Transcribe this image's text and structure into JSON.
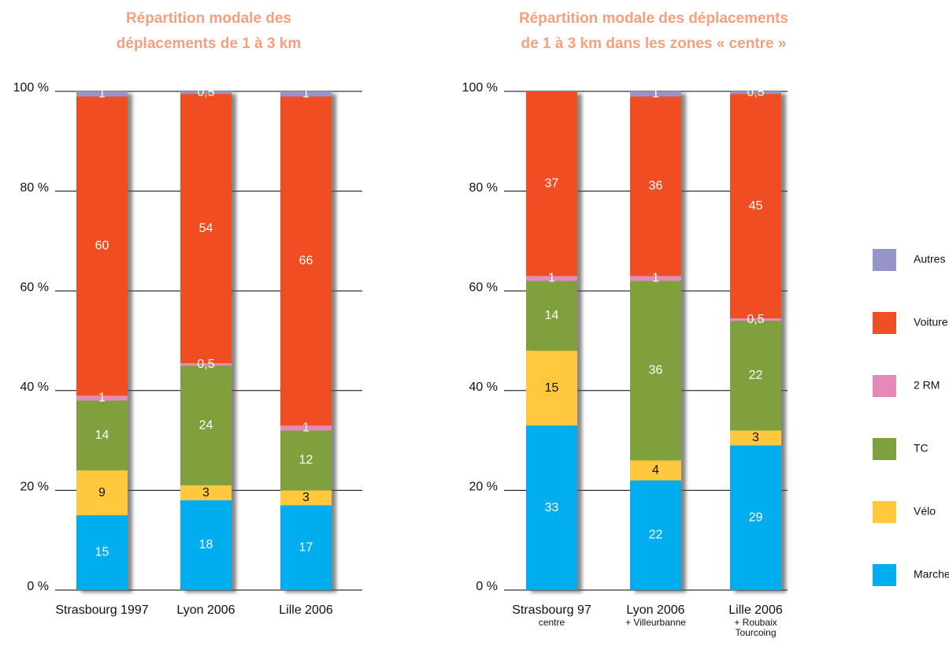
{
  "chart_data": [
    {
      "type": "bar",
      "stacked": true,
      "title": [
        "Répartition modale des",
        "déplacements de 1 à 3 km"
      ],
      "categories": [
        "Strasbourg 1997",
        "Lyon 2006",
        "Lille 2006"
      ],
      "ylim": [
        0,
        100
      ],
      "yticks": [
        {
          "value": 0,
          "label": "0 %"
        },
        {
          "value": 20,
          "label": "20 %"
        },
        {
          "value": 40,
          "label": "40 %"
        },
        {
          "value": 60,
          "label": "60 %"
        },
        {
          "value": 80,
          "label": "80 %"
        },
        {
          "value": 100,
          "label": "100 %"
        }
      ],
      "grid": true,
      "series": [
        {
          "name": "Marche",
          "color": "#00aeef",
          "values": [
            15,
            18,
            17
          ]
        },
        {
          "name": "Vélo",
          "color": "#ffc83d",
          "values": [
            9,
            3,
            3
          ]
        },
        {
          "name": "TC",
          "color": "#7fa03e",
          "values": [
            14,
            24,
            12
          ]
        },
        {
          "name": "2 RM",
          "color": "#e589b8",
          "values": [
            1,
            0.5,
            1
          ],
          "value_labels": [
            "1",
            "0,5",
            "1"
          ]
        },
        {
          "name": "Voiture",
          "color": "#f04e23",
          "values": [
            60,
            54,
            66
          ]
        },
        {
          "name": "Autres",
          "color": "#9595c9",
          "values": [
            1,
            0.5,
            1
          ],
          "value_labels": [
            "1",
            "0,5",
            "1"
          ]
        }
      ]
    },
    {
      "type": "bar",
      "stacked": true,
      "title": [
        "Répartition modale des déplacements",
        "de 1 à 3 km dans les zones « centre »"
      ],
      "categories": [
        "Strasbourg 97",
        "Lyon 2006",
        "Lille 2006"
      ],
      "category_sublabels": [
        [
          "centre"
        ],
        [
          "+ Villeurbanne"
        ],
        [
          "+ Roubaix",
          "Tourcoing"
        ]
      ],
      "ylim": [
        0,
        100
      ],
      "yticks": [
        {
          "value": 0,
          "label": "0 %"
        },
        {
          "value": 20,
          "label": "20 %"
        },
        {
          "value": 40,
          "label": "40 %"
        },
        {
          "value": 60,
          "label": "60 %"
        },
        {
          "value": 80,
          "label": "80 %"
        },
        {
          "value": 100,
          "label": "100 %"
        }
      ],
      "grid": true,
      "legend": "right",
      "series": [
        {
          "name": "Marche",
          "color": "#00aeef",
          "values": [
            33,
            22,
            29
          ]
        },
        {
          "name": "Vélo",
          "color": "#ffc83d",
          "values": [
            15,
            4,
            3
          ]
        },
        {
          "name": "TC",
          "color": "#7fa03e",
          "values": [
            14,
            36,
            22
          ]
        },
        {
          "name": "2 RM",
          "color": "#e589b8",
          "values": [
            1,
            1,
            0.5
          ],
          "value_labels": [
            "1",
            "1",
            "0,5"
          ]
        },
        {
          "name": "Voiture",
          "color": "#f04e23",
          "values": [
            37,
            36,
            45
          ]
        },
        {
          "name": "Autres",
          "color": "#9595c9",
          "values": [
            null,
            1,
            0.5
          ],
          "value_labels": [
            null,
            "1",
            "0,5"
          ]
        }
      ]
    }
  ]
}
